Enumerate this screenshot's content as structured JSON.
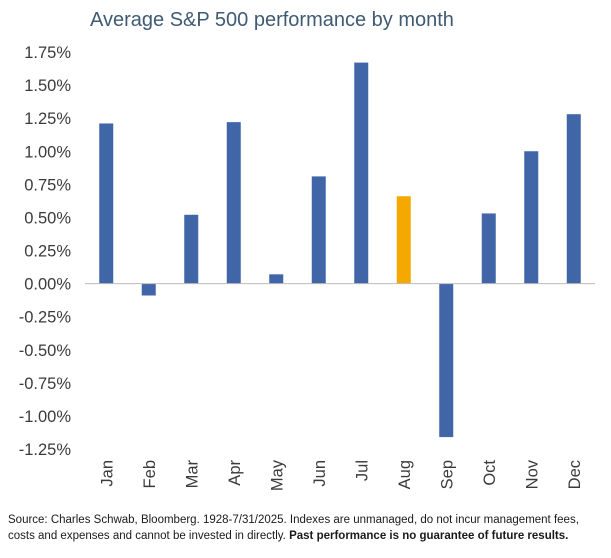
{
  "chart_data": {
    "type": "bar",
    "title": "Average S&P 500 performance by month",
    "categories": [
      "Jan",
      "Feb",
      "Mar",
      "Apr",
      "May",
      "Jun",
      "Jul",
      "Aug",
      "Sep",
      "Oct",
      "Nov",
      "Dec"
    ],
    "values": [
      1.21,
      -0.09,
      0.52,
      1.22,
      0.07,
      0.81,
      1.67,
      0.66,
      -1.16,
      0.53,
      1.0,
      1.28
    ],
    "highlight_category": "Aug",
    "colors": {
      "default": "#4166a8",
      "highlight": "#f5a800"
    },
    "y_ticks": [
      "1.75%",
      "1.50%",
      "1.25%",
      "1.00%",
      "0.75%",
      "0.50%",
      "0.25%",
      "0.00%",
      "-0.25%",
      "-0.50%",
      "-0.75%",
      "-1.00%",
      "-1.25%"
    ],
    "ylim": [
      -1.25,
      1.75
    ],
    "grid": false,
    "legend": "none"
  },
  "footnote": {
    "text": "Source: Charles Schwab, Bloomberg. 1928-7/31/2025. Indexes are unmanaged, do not incur management fees, costs and expenses and cannot be invested in directly. ",
    "bold": "Past performance is no guarantee of future results."
  }
}
